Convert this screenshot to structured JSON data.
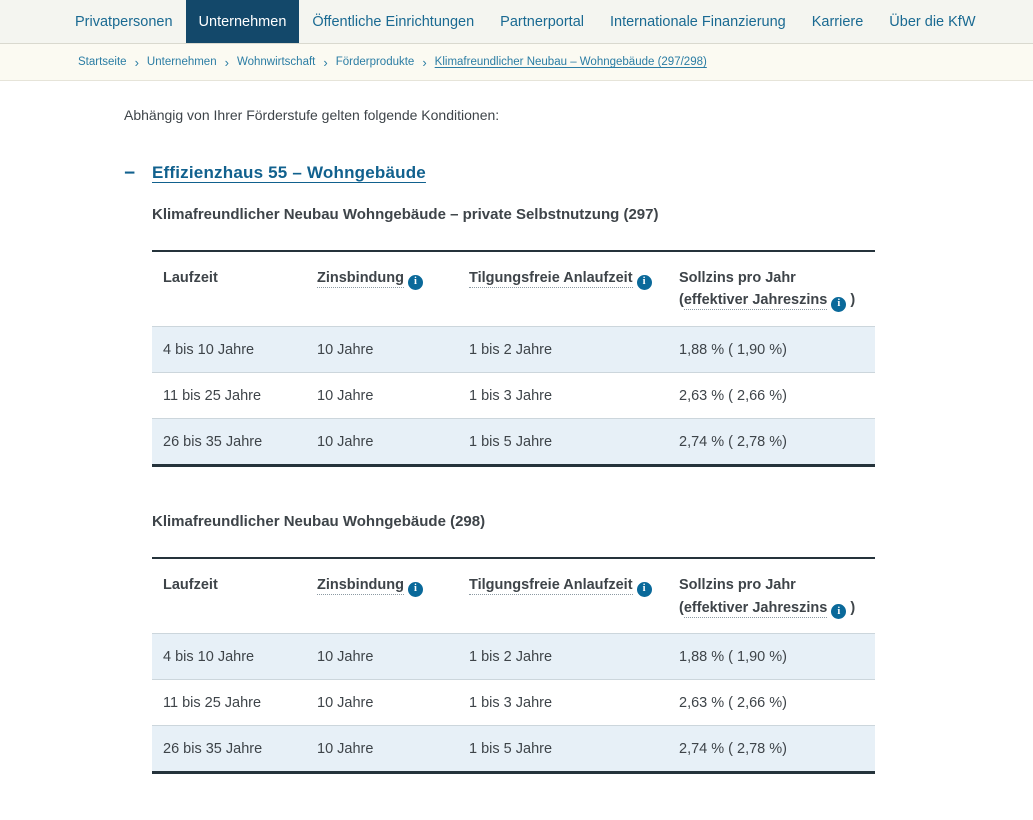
{
  "nav": {
    "items": [
      {
        "label": "Privatpersonen",
        "active": false
      },
      {
        "label": "Unternehmen",
        "active": true
      },
      {
        "label": "Öffentliche Einrichtungen",
        "active": false
      },
      {
        "label": "Partnerportal",
        "active": false
      },
      {
        "label": "Internationale Finanzierung",
        "active": false
      },
      {
        "label": "Karriere",
        "active": false
      },
      {
        "label": "Über die KfW",
        "active": false
      }
    ]
  },
  "breadcrumb": {
    "separator": "›",
    "items": [
      "Startseite",
      "Unternehmen",
      "Wohnwirtschaft",
      "Förderprodukte",
      "Klimafreundlicher Neubau – Wohngebäude (297/298)"
    ]
  },
  "content": {
    "intro": "Abhängig von Ihrer Förderstufe gelten folgende Konditionen:",
    "section": {
      "toggle_glyph": "−",
      "title": "Effizienzhaus 55 – Wohngebäude"
    }
  },
  "icons": {
    "info_glyph": "i"
  },
  "tables": [
    {
      "title": "Klimafreundlicher Neubau Wohngebäude – private Selbstnutzung (297)",
      "headers": {
        "col1": "Laufzeit",
        "col2": "Zinsbindung",
        "col3": "Tilgungsfreie Anlaufzeit",
        "col4_prefix": "Sollzins pro Jahr (",
        "col4_term": "effektiver Jahreszins",
        "col4_suffix": ")"
      },
      "rows": [
        [
          "4 bis 10 Jahre",
          "10 Jahre",
          "1 bis 2 Jahre",
          "1,88 % ( 1,90 %)"
        ],
        [
          "11 bis 25 Jahre",
          "10 Jahre",
          "1 bis 3 Jahre",
          "2,63 % ( 2,66 %)"
        ],
        [
          "26 bis 35 Jahre",
          "10 Jahre",
          "1 bis 5 Jahre",
          "2,74 % ( 2,78 %)"
        ]
      ]
    },
    {
      "title": "Klimafreundlicher Neubau Wohngebäude (298)",
      "headers": {
        "col1": "Laufzeit",
        "col2": "Zinsbindung",
        "col3": "Tilgungsfreie Anlaufzeit",
        "col4_prefix": "Sollzins pro Jahr (",
        "col4_term": "effektiver Jahreszins",
        "col4_suffix": ")"
      },
      "rows": [
        [
          "4 bis 10 Jahre",
          "10 Jahre",
          "1 bis 2 Jahre",
          "1,88 % ( 1,90 %)"
        ],
        [
          "11 bis 25 Jahre",
          "10 Jahre",
          "1 bis 3 Jahre",
          "2,63 % ( 2,66 %)"
        ],
        [
          "26 bis 35 Jahre",
          "10 Jahre",
          "1 bis 5 Jahre",
          "2,74 % ( 2,78 %)"
        ]
      ]
    }
  ],
  "colors": {
    "nav_active_bg": "#13486a",
    "link_blue": "#1a6a92",
    "section_link_blue": "#11618e",
    "breadcrumb_link": "#2b7da4",
    "row_highlight": "#e7f0f7",
    "info_icon_bg": "#0a699a",
    "table_border_dark": "#25333b"
  }
}
